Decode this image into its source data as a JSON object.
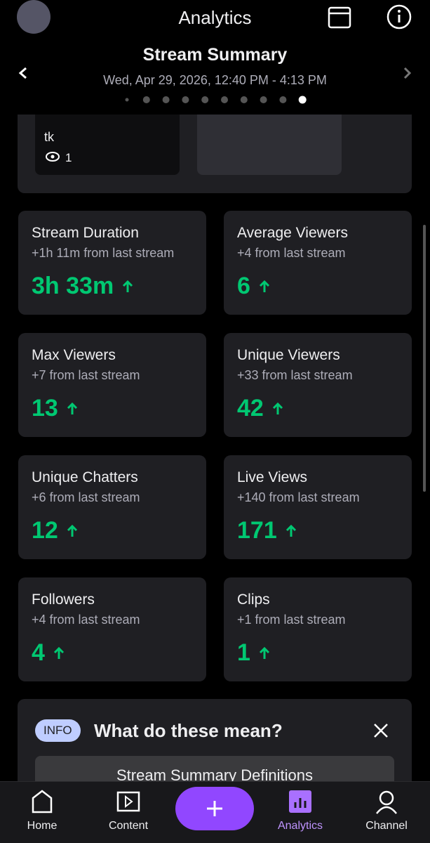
{
  "header": {
    "title": "Analytics"
  },
  "summary": {
    "title": "Stream Summary",
    "date": "Wed, Apr 29, 2026, 12:40 PM - 4:13 PM"
  },
  "clip": {
    "title": "tk",
    "views": 1
  },
  "stats": [
    {
      "title": "Stream Duration",
      "delta": "+1h 11m from last stream",
      "value": "3h 33m"
    },
    {
      "title": "Average Viewers",
      "delta": "+4 from last stream",
      "value": "6"
    },
    {
      "title": "Max Viewers",
      "delta": "+7 from last stream",
      "value": "13"
    },
    {
      "title": "Unique Viewers",
      "delta": "+33 from last stream",
      "value": "42"
    },
    {
      "title": "Unique Chatters",
      "delta": "+6 from last stream",
      "value": "12"
    },
    {
      "title": "Live Views",
      "delta": "+140 from last stream",
      "value": "171"
    },
    {
      "title": "Followers",
      "delta": "+4 from last stream",
      "value": "4"
    },
    {
      "title": "Clips",
      "delta": "+1 from last stream",
      "value": "1"
    }
  ],
  "info": {
    "badge": "INFO",
    "heading": "What do these mean?",
    "button": "Stream Summary Definitions"
  },
  "nav": [
    {
      "label": "Home"
    },
    {
      "label": "Content"
    },
    {
      "label": "Analytics"
    },
    {
      "label": "Channel"
    }
  ]
}
